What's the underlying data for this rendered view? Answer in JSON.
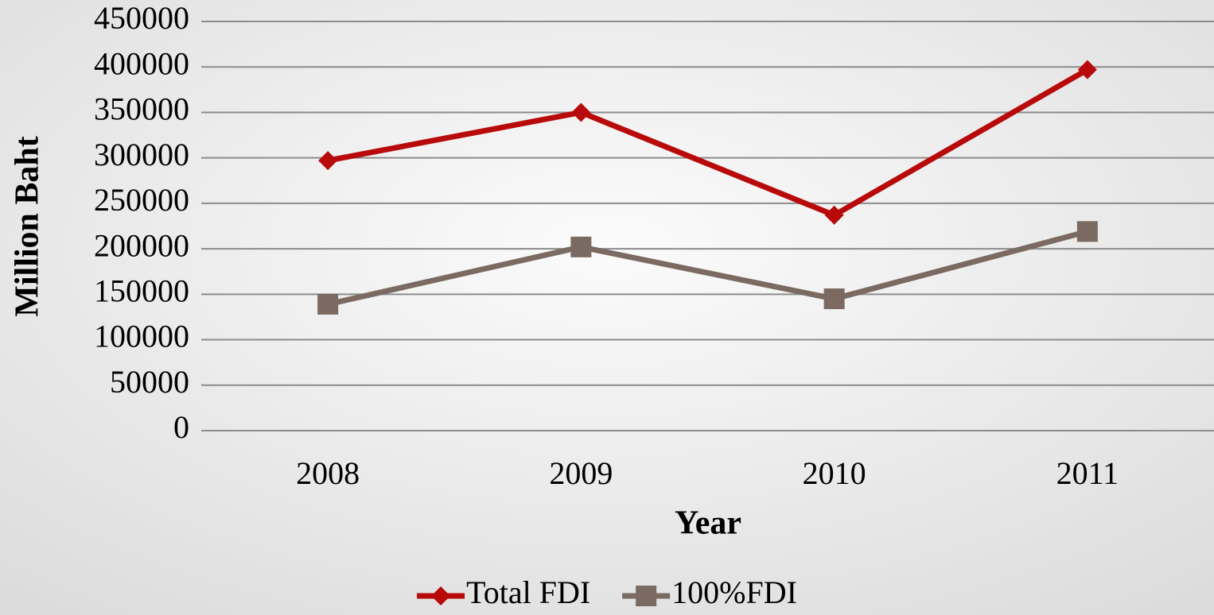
{
  "chart_data": {
    "type": "line",
    "categories": [
      "2008",
      "2009",
      "2010",
      "2011"
    ],
    "series": [
      {
        "name": "Total FDI",
        "color": "#b80a0a",
        "marker": "diamond",
        "values": [
          297000,
          350000,
          237000,
          397000
        ]
      },
      {
        "name": "100%FDI",
        "color": "#7a6a61",
        "marker": "square",
        "values": [
          139000,
          202000,
          145000,
          219000
        ]
      }
    ],
    "ylim": [
      0,
      450000
    ],
    "yticks": [
      0,
      50000,
      100000,
      150000,
      200000,
      250000,
      300000,
      350000,
      400000,
      450000
    ],
    "y_label": "Million Baht",
    "x_label": "Year",
    "grid": true,
    "legend": "bottom"
  }
}
